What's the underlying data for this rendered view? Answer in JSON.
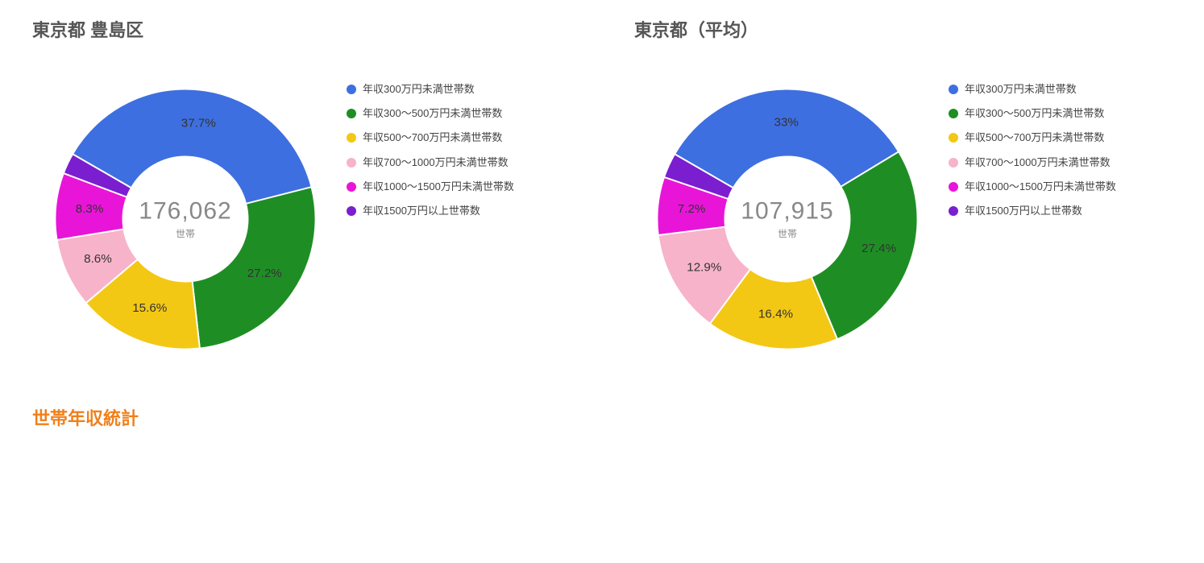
{
  "footer_title": "世帯年収統計",
  "background_color": "#ffffff",
  "title_color": "#555555",
  "title_fontsize": 22,
  "footer_color": "#f0801a",
  "center_value_color": "#888888",
  "center_value_fontsize": 30,
  "center_unit_fontsize": 12,
  "slice_label_fontsize": 16,
  "slice_label_color": "#333333",
  "legend_fontsize": 13,
  "legend_color": "#444444",
  "legend_dot_size": 12,
  "charts": [
    {
      "title": "東京都 豊島区",
      "type": "donut",
      "center_value": "176,062",
      "center_unit": "世帯",
      "inner_radius_ratio": 0.48,
      "outer_radius_ratio": 1.0,
      "start_angle_deg": -60,
      "slices": [
        {
          "label": "年収300万円未満世帯数",
          "value": 37.7,
          "pct_text": "37.7%",
          "color": "#3e6fe0"
        },
        {
          "label": "年収300〜500万円未満世帯数",
          "value": 27.2,
          "pct_text": "27.2%",
          "color": "#1e8e24"
        },
        {
          "label": "年収500〜700万円未満世帯数",
          "value": 15.6,
          "pct_text": "15.6%",
          "color": "#f3c814"
        },
        {
          "label": "年収700〜1000万円未満世帯数",
          "value": 8.6,
          "pct_text": "8.6%",
          "color": "#f7b3c9"
        },
        {
          "label": "年収1000〜1500万円未満世帯数",
          "value": 8.3,
          "pct_text": "8.3%",
          "color": "#e815d8"
        },
        {
          "label": "年収1500万円以上世帯数",
          "value": 2.6,
          "pct_text": "",
          "color": "#7a1ed0"
        }
      ]
    },
    {
      "title": "東京都（平均）",
      "type": "donut",
      "center_value": "107,915",
      "center_unit": "世帯",
      "inner_radius_ratio": 0.48,
      "outer_radius_ratio": 1.0,
      "start_angle_deg": -60,
      "slices": [
        {
          "label": "年収300万円未満世帯数",
          "value": 33.0,
          "pct_text": "33%",
          "color": "#3e6fe0"
        },
        {
          "label": "年収300〜500万円未満世帯数",
          "value": 27.4,
          "pct_text": "27.4%",
          "color": "#1e8e24"
        },
        {
          "label": "年収500〜700万円未満世帯数",
          "value": 16.4,
          "pct_text": "16.4%",
          "color": "#f3c814"
        },
        {
          "label": "年収700〜1000万円未満世帯数",
          "value": 12.9,
          "pct_text": "12.9%",
          "color": "#f7b3c9"
        },
        {
          "label": "年収1000〜1500万円未満世帯数",
          "value": 7.2,
          "pct_text": "7.2%",
          "color": "#e815d8"
        },
        {
          "label": "年収1500万円以上世帯数",
          "value": 3.1,
          "pct_text": "",
          "color": "#7a1ed0"
        }
      ]
    }
  ]
}
